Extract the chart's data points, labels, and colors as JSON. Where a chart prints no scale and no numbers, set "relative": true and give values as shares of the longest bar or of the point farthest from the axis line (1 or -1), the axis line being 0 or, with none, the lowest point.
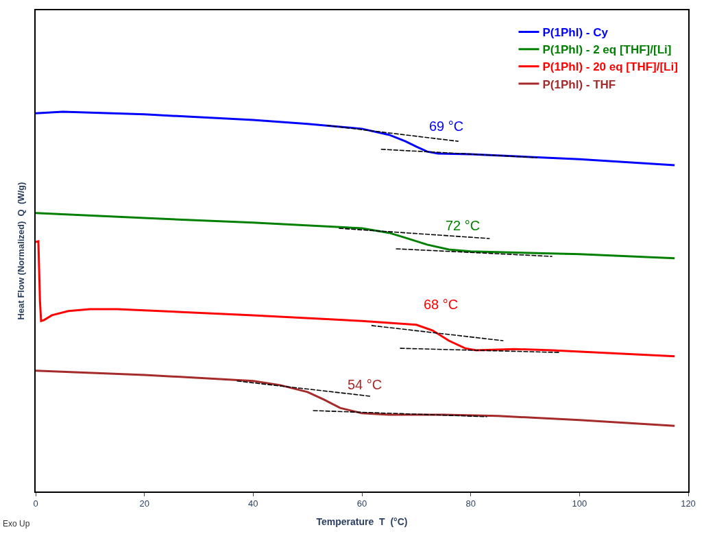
{
  "chart_data": {
    "type": "line",
    "relative": true,
    "xlabel": "Temperature  T  (°C)",
    "ylabel": "Heat Flow (Normalized)  Q  (W/g)",
    "xlim": [
      0,
      120
    ],
    "xticks": [
      0,
      20,
      40,
      60,
      80,
      100,
      120
    ],
    "legend": "top right",
    "marker": "none",
    "line_style": "solid",
    "series": [
      {
        "name": "P(1Phl) - Cy",
        "color": "#0000ff",
        "x": [
          0,
          5,
          20,
          40,
          50,
          60,
          65,
          68,
          70,
          72,
          74,
          80,
          100,
          117.5
        ],
        "values": [
          0.996,
          1.0,
          0.993,
          0.978,
          0.968,
          0.955,
          0.939,
          0.922,
          0.908,
          0.895,
          0.89,
          0.888,
          0.875,
          0.859
        ]
      },
      {
        "name": "P(1Phl) - 2 eq [THF]/[Li]",
        "color": "#008000",
        "x": [
          0,
          20,
          40,
          60,
          65,
          68,
          72,
          76,
          80,
          100,
          117.5
        ],
        "values": [
          0.733,
          0.72,
          0.708,
          0.693,
          0.681,
          0.668,
          0.65,
          0.637,
          0.632,
          0.625,
          0.614
        ]
      },
      {
        "name": "P(1Phl) - 20 eq [THF]/[Li]",
        "color": "#ff0000",
        "x": [
          0,
          0.5,
          0.8,
          1.0,
          1.5,
          3,
          6,
          10,
          15,
          20,
          40,
          60,
          70,
          73,
          76,
          79,
          81,
          88,
          95,
          117.5
        ],
        "values": [
          0.657,
          0.659,
          0.5,
          0.449,
          0.451,
          0.464,
          0.475,
          0.48,
          0.48,
          0.477,
          0.464,
          0.449,
          0.439,
          0.424,
          0.397,
          0.377,
          0.372,
          0.375,
          0.372,
          0.356
        ]
      },
      {
        "name": "P(1Phl) - THF",
        "color": "#a52a2a",
        "x": [
          0,
          20,
          40,
          45,
          50,
          53,
          56,
          60,
          65,
          75,
          85,
          100,
          117.5
        ],
        "values": [
          0.318,
          0.307,
          0.291,
          0.28,
          0.262,
          0.242,
          0.22,
          0.206,
          0.202,
          0.202,
          0.199,
          0.188,
          0.173
        ]
      },
      {
        "color": "#000000",
        "line_style": "dashed",
        "x": [
          53.5,
          77.75
        ],
        "values": [
          0.964,
          0.922
        ]
      },
      {
        "color": "#000000",
        "line_style": "dashed",
        "x": [
          63.5,
          92.25
        ],
        "values": [
          0.901,
          0.879
        ]
      },
      {
        "color": "#000000",
        "line_style": "dashed",
        "x": [
          55.75,
          83.5
        ],
        "values": [
          0.693,
          0.666
        ]
      },
      {
        "color": "#000000",
        "line_style": "dashed",
        "x": [
          66.25,
          95
        ],
        "values": [
          0.639,
          0.619
        ]
      },
      {
        "color": "#000000",
        "line_style": "dashed",
        "x": [
          61.75,
          86
        ],
        "values": [
          0.437,
          0.397
        ]
      },
      {
        "color": "#000000",
        "line_style": "dashed",
        "x": [
          67,
          96.5
        ],
        "values": [
          0.377,
          0.366
        ]
      },
      {
        "color": "#000000",
        "line_style": "dashed",
        "x": [
          37,
          61.5
        ],
        "values": [
          0.291,
          0.251
        ]
      },
      {
        "color": "#000000",
        "line_style": "dashed",
        "x": [
          51,
          83
        ],
        "values": [
          0.213,
          0.197
        ]
      }
    ],
    "annotations": [
      {
        "text": "69 °C",
        "x": 69,
        "y": 0.912
      },
      {
        "text": "72 °C",
        "x": 72,
        "y": 0.65
      },
      {
        "text": "68 °C",
        "x": 68,
        "y": 0.443
      },
      {
        "text": "54 °C",
        "x": 54,
        "y": 0.231
      },
      "Exo Up"
    ]
  }
}
